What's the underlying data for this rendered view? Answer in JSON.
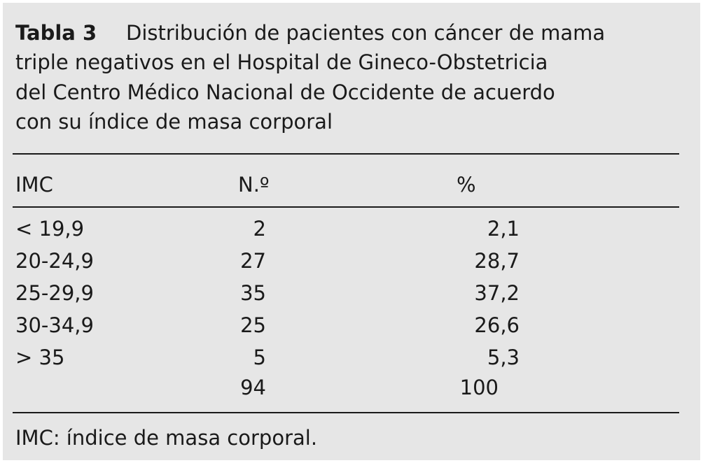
{
  "title": {
    "label": "Tabla 3",
    "lines": [
      "Distribución de pacientes con cáncer de mama",
      "triple negativos en el Hospital de Gineco-Obstetricia",
      "del Centro Médico Nacional de Occidente de acuerdo",
      "con su índice de masa corporal"
    ]
  },
  "table": {
    "header": [
      "IMC",
      "N.º",
      "%"
    ],
    "rows": [
      [
        "< 19,9",
        "2",
        "2,1"
      ],
      [
        "20-24,9",
        "27",
        "28,7"
      ],
      [
        "25-29,9",
        "35",
        "37,2"
      ],
      [
        "30-34,9",
        "25",
        "26,6"
      ],
      [
        "> 35",
        "5",
        "5,3"
      ]
    ],
    "total": {
      "n": "94",
      "pct": "100"
    }
  },
  "footnote": "IMC: índice de masa corporal."
}
